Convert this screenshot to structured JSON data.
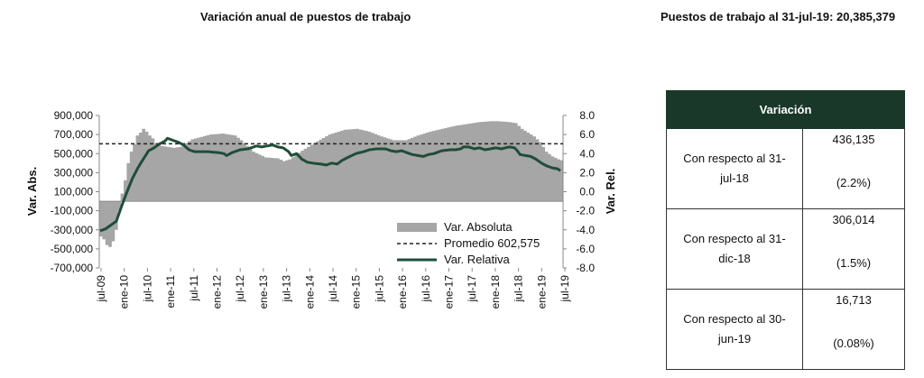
{
  "chart_title": "Variación anual de puestos de trabajo",
  "stat_title": "Puestos de trabajo al 31-jul-19: 20,385,379",
  "table": {
    "header": "Variación",
    "rows": [
      {
        "label": "Con respecto al 31-jul-18",
        "abs": "436,135",
        "pct": "(2.2%)"
      },
      {
        "label": "Con respecto al 31-dic-18",
        "abs": "306,014",
        "pct": "(1.5%)"
      },
      {
        "label": "Con respecto al 30-jun-19",
        "abs": "16,713",
        "pct": "(0.08%)"
      }
    ]
  },
  "chart_data": {
    "type": "bar+line",
    "x_tick_labels": [
      "jul-09",
      "ene-10",
      "jul-10",
      "ene-11",
      "jul-11",
      "ene-12",
      "jul-12",
      "ene-13",
      "jul-13",
      "ene-14",
      "jul-14",
      "ene-15",
      "jul-15",
      "ene-16",
      "jul-16",
      "ene-17",
      "jul-17",
      "ene-18",
      "jul-18",
      "ene-19",
      "jul-19"
    ],
    "y_left": {
      "label": "Var. Abs.",
      "min": -700000,
      "max": 900000,
      "ticks": [
        "900,000",
        "700,000",
        "500,000",
        "300,000",
        "100,000",
        "-100,000",
        "-300,000",
        "-500,000",
        "-700,000"
      ]
    },
    "y_right": {
      "label": "Var. Rel.",
      "min": -8.0,
      "max": 8.0,
      "ticks": [
        "8.0",
        "6.0",
        "4.0",
        "2.0",
        "0.0",
        "-2.0",
        "-4.0",
        "-6.0",
        "-8.0"
      ]
    },
    "legend": [
      "Var. Absoluta",
      "Promedio 602,575",
      "Var. Relativa"
    ],
    "average": 602575,
    "colors": {
      "bars": "#a6a6a6",
      "line": "#1f4d3a",
      "average": "#222222"
    },
    "absolute_anchors": [
      [
        0,
        -370000
      ],
      [
        1,
        -400000
      ],
      [
        2,
        -460000
      ],
      [
        3,
        -480000
      ],
      [
        4,
        -420000
      ],
      [
        5,
        -300000
      ],
      [
        6,
        -100000
      ],
      [
        7,
        80000
      ],
      [
        8,
        220000
      ],
      [
        9,
        400000
      ],
      [
        10,
        520000
      ],
      [
        11,
        600000
      ],
      [
        12,
        690000
      ],
      [
        13,
        720000
      ],
      [
        14,
        760000
      ],
      [
        15,
        730000
      ],
      [
        16,
        690000
      ],
      [
        17,
        660000
      ],
      [
        18,
        610000
      ],
      [
        20,
        580000
      ],
      [
        24,
        560000
      ],
      [
        26,
        570000
      ],
      [
        30,
        650000
      ],
      [
        36,
        700000
      ],
      [
        40,
        710000
      ],
      [
        44,
        690000
      ],
      [
        46,
        640000
      ],
      [
        48,
        580000
      ],
      [
        50,
        520000
      ],
      [
        54,
        460000
      ],
      [
        58,
        450000
      ],
      [
        60,
        420000
      ],
      [
        62,
        440000
      ],
      [
        66,
        530000
      ],
      [
        70,
        610000
      ],
      [
        75,
        700000
      ],
      [
        80,
        750000
      ],
      [
        84,
        760000
      ],
      [
        88,
        730000
      ],
      [
        92,
        680000
      ],
      [
        96,
        640000
      ],
      [
        100,
        640000
      ],
      [
        104,
        690000
      ],
      [
        108,
        730000
      ],
      [
        112,
        760000
      ],
      [
        116,
        790000
      ],
      [
        120,
        810000
      ],
      [
        124,
        830000
      ],
      [
        128,
        840000
      ],
      [
        130,
        840000
      ],
      [
        134,
        830000
      ],
      [
        136,
        820000
      ],
      [
        138,
        760000
      ],
      [
        140,
        720000
      ],
      [
        142,
        680000
      ],
      [
        144,
        620000
      ],
      [
        146,
        520000
      ],
      [
        148,
        470000
      ],
      [
        150,
        440000
      ],
      [
        151,
        430000
      ]
    ],
    "relative_anchors": [
      [
        0,
        -4.1
      ],
      [
        2,
        -3.9
      ],
      [
        4,
        -3.5
      ],
      [
        6,
        -3.1
      ],
      [
        8,
        -1.5
      ],
      [
        10,
        0.0
      ],
      [
        12,
        1.4
      ],
      [
        14,
        2.5
      ],
      [
        16,
        3.4
      ],
      [
        18,
        4.3
      ],
      [
        20,
        4.6
      ],
      [
        22,
        5.0
      ],
      [
        24,
        5.3
      ],
      [
        25,
        5.6
      ],
      [
        27,
        5.4
      ],
      [
        29,
        5.2
      ],
      [
        31,
        4.9
      ],
      [
        33,
        4.4
      ],
      [
        35,
        4.2
      ],
      [
        40,
        4.2
      ],
      [
        44,
        4.1
      ],
      [
        46,
        4.0
      ],
      [
        47,
        3.8
      ],
      [
        49,
        4.1
      ],
      [
        52,
        4.4
      ],
      [
        55,
        4.5
      ],
      [
        58,
        4.8
      ],
      [
        60,
        4.7
      ],
      [
        62,
        4.8
      ],
      [
        64,
        4.9
      ],
      [
        66,
        4.7
      ],
      [
        68,
        4.6
      ],
      [
        70,
        4.2
      ],
      [
        71,
        3.8
      ],
      [
        73,
        4.0
      ],
      [
        75,
        3.4
      ],
      [
        77,
        3.1
      ],
      [
        79,
        3.0
      ],
      [
        82,
        2.9
      ],
      [
        84,
        2.8
      ],
      [
        86,
        3.0
      ],
      [
        88,
        2.9
      ],
      [
        90,
        3.3
      ],
      [
        92,
        3.6
      ],
      [
        95,
        4.0
      ],
      [
        98,
        4.2
      ],
      [
        100,
        4.4
      ],
      [
        103,
        4.5
      ],
      [
        106,
        4.5
      ],
      [
        108,
        4.3
      ],
      [
        110,
        4.2
      ],
      [
        112,
        4.3
      ],
      [
        114,
        4.1
      ],
      [
        116,
        3.9
      ],
      [
        118,
        3.8
      ],
      [
        120,
        3.7
      ],
      [
        122,
        3.9
      ],
      [
        124,
        4.0
      ],
      [
        127,
        4.3
      ],
      [
        130,
        4.4
      ],
      [
        132,
        4.4
      ],
      [
        134,
        4.5
      ],
      [
        135,
        4.7
      ],
      [
        137,
        4.7
      ],
      [
        139,
        4.5
      ],
      [
        141,
        4.6
      ],
      [
        143,
        4.4
      ],
      [
        145,
        4.5
      ],
      [
        147,
        4.6
      ],
      [
        149,
        4.5
      ],
      [
        152,
        4.7
      ],
      [
        154,
        4.6
      ],
      [
        155,
        4.3
      ],
      [
        156,
        3.9
      ],
      [
        158,
        3.8
      ],
      [
        160,
        3.7
      ],
      [
        162,
        3.4
      ],
      [
        164,
        3.0
      ],
      [
        166,
        2.7
      ],
      [
        168,
        2.5
      ],
      [
        170,
        2.4
      ],
      [
        171,
        2.2
      ]
    ]
  }
}
